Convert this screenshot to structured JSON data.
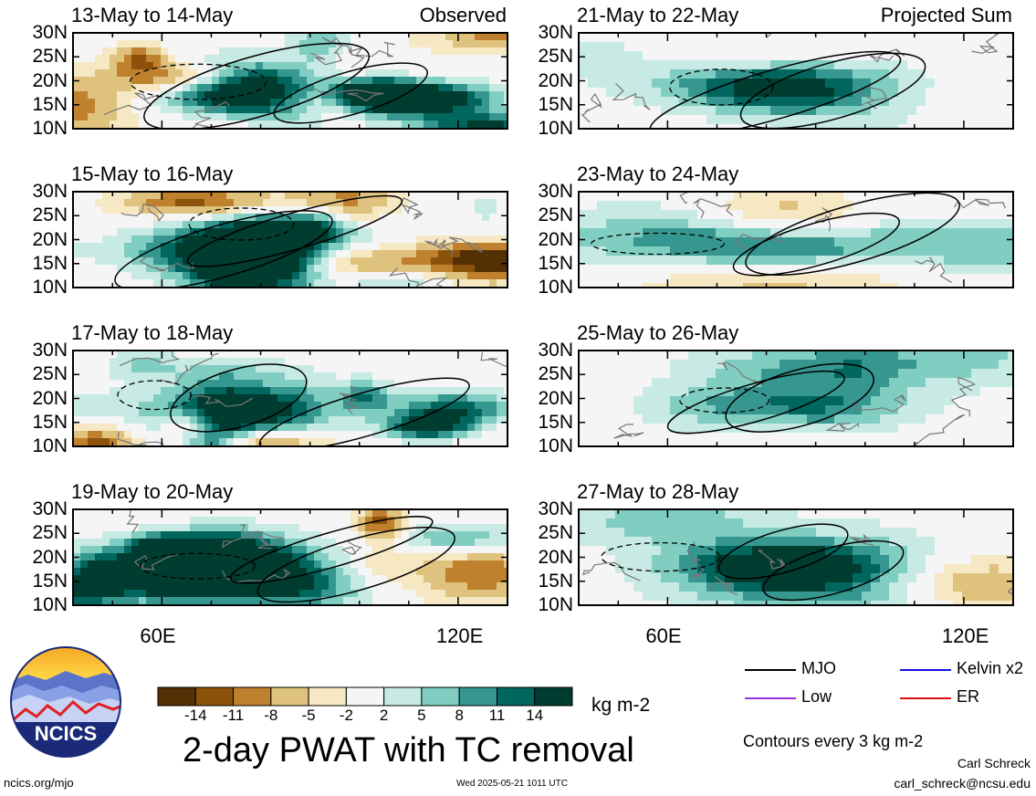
{
  "chart_data": {
    "type": "heatmap",
    "title": "2-day PWAT with TC removal",
    "units": "kg m-2",
    "columns": [
      {
        "label": "Observed"
      },
      {
        "label": "Projected Sum"
      }
    ],
    "panels": [
      {
        "period": "13-May to 14-May",
        "column": 0,
        "row": 0
      },
      {
        "period": "15-May to 16-May",
        "column": 0,
        "row": 1
      },
      {
        "period": "17-May to 18-May",
        "column": 0,
        "row": 2
      },
      {
        "period": "19-May to 20-May",
        "column": 0,
        "row": 3
      },
      {
        "period": "21-May to 22-May",
        "column": 1,
        "row": 0
      },
      {
        "period": "23-May to 24-May",
        "column": 1,
        "row": 1
      },
      {
        "period": "25-May to 26-May",
        "column": 1,
        "row": 2
      },
      {
        "period": "27-May to 28-May",
        "column": 1,
        "row": 3
      }
    ],
    "lat_ticks": [
      "30N",
      "25N",
      "20N",
      "15N",
      "10N"
    ],
    "lat_range": [
      10,
      30
    ],
    "lon_ticks": [
      "60E",
      "120E"
    ],
    "lon_tick_values": [
      60,
      120
    ],
    "lon_range": [
      42,
      130
    ],
    "colorbar": {
      "labels": [
        "-14",
        "-11",
        "-8",
        "-5",
        "-2",
        "2",
        "5",
        "8",
        "11",
        "14"
      ],
      "colors": [
        "#543005",
        "#8c510a",
        "#bf812d",
        "#dfc27d",
        "#f6e8c3",
        "#f5f5f5",
        "#c7eae5",
        "#80cdc1",
        "#35978f",
        "#01665e",
        "#003c30"
      ]
    },
    "contour_interval": "Contours every 3 kg m-2",
    "legend": [
      {
        "name": "MJO",
        "color": "#000000"
      },
      {
        "name": "Kelvin x2",
        "color": "#1010e0"
      },
      {
        "name": "Low",
        "color": "#9b30d9"
      },
      {
        "name": "ER",
        "color": "#e01010"
      }
    ]
  },
  "logo": {
    "text": "NCICS"
  },
  "footer": {
    "url": "ncics.org/mjo",
    "timestamp": "Wed 2025-05-21 1011 UTC",
    "author": "Carl Schreck",
    "email": "carl_schreck@ncsu.edu"
  }
}
